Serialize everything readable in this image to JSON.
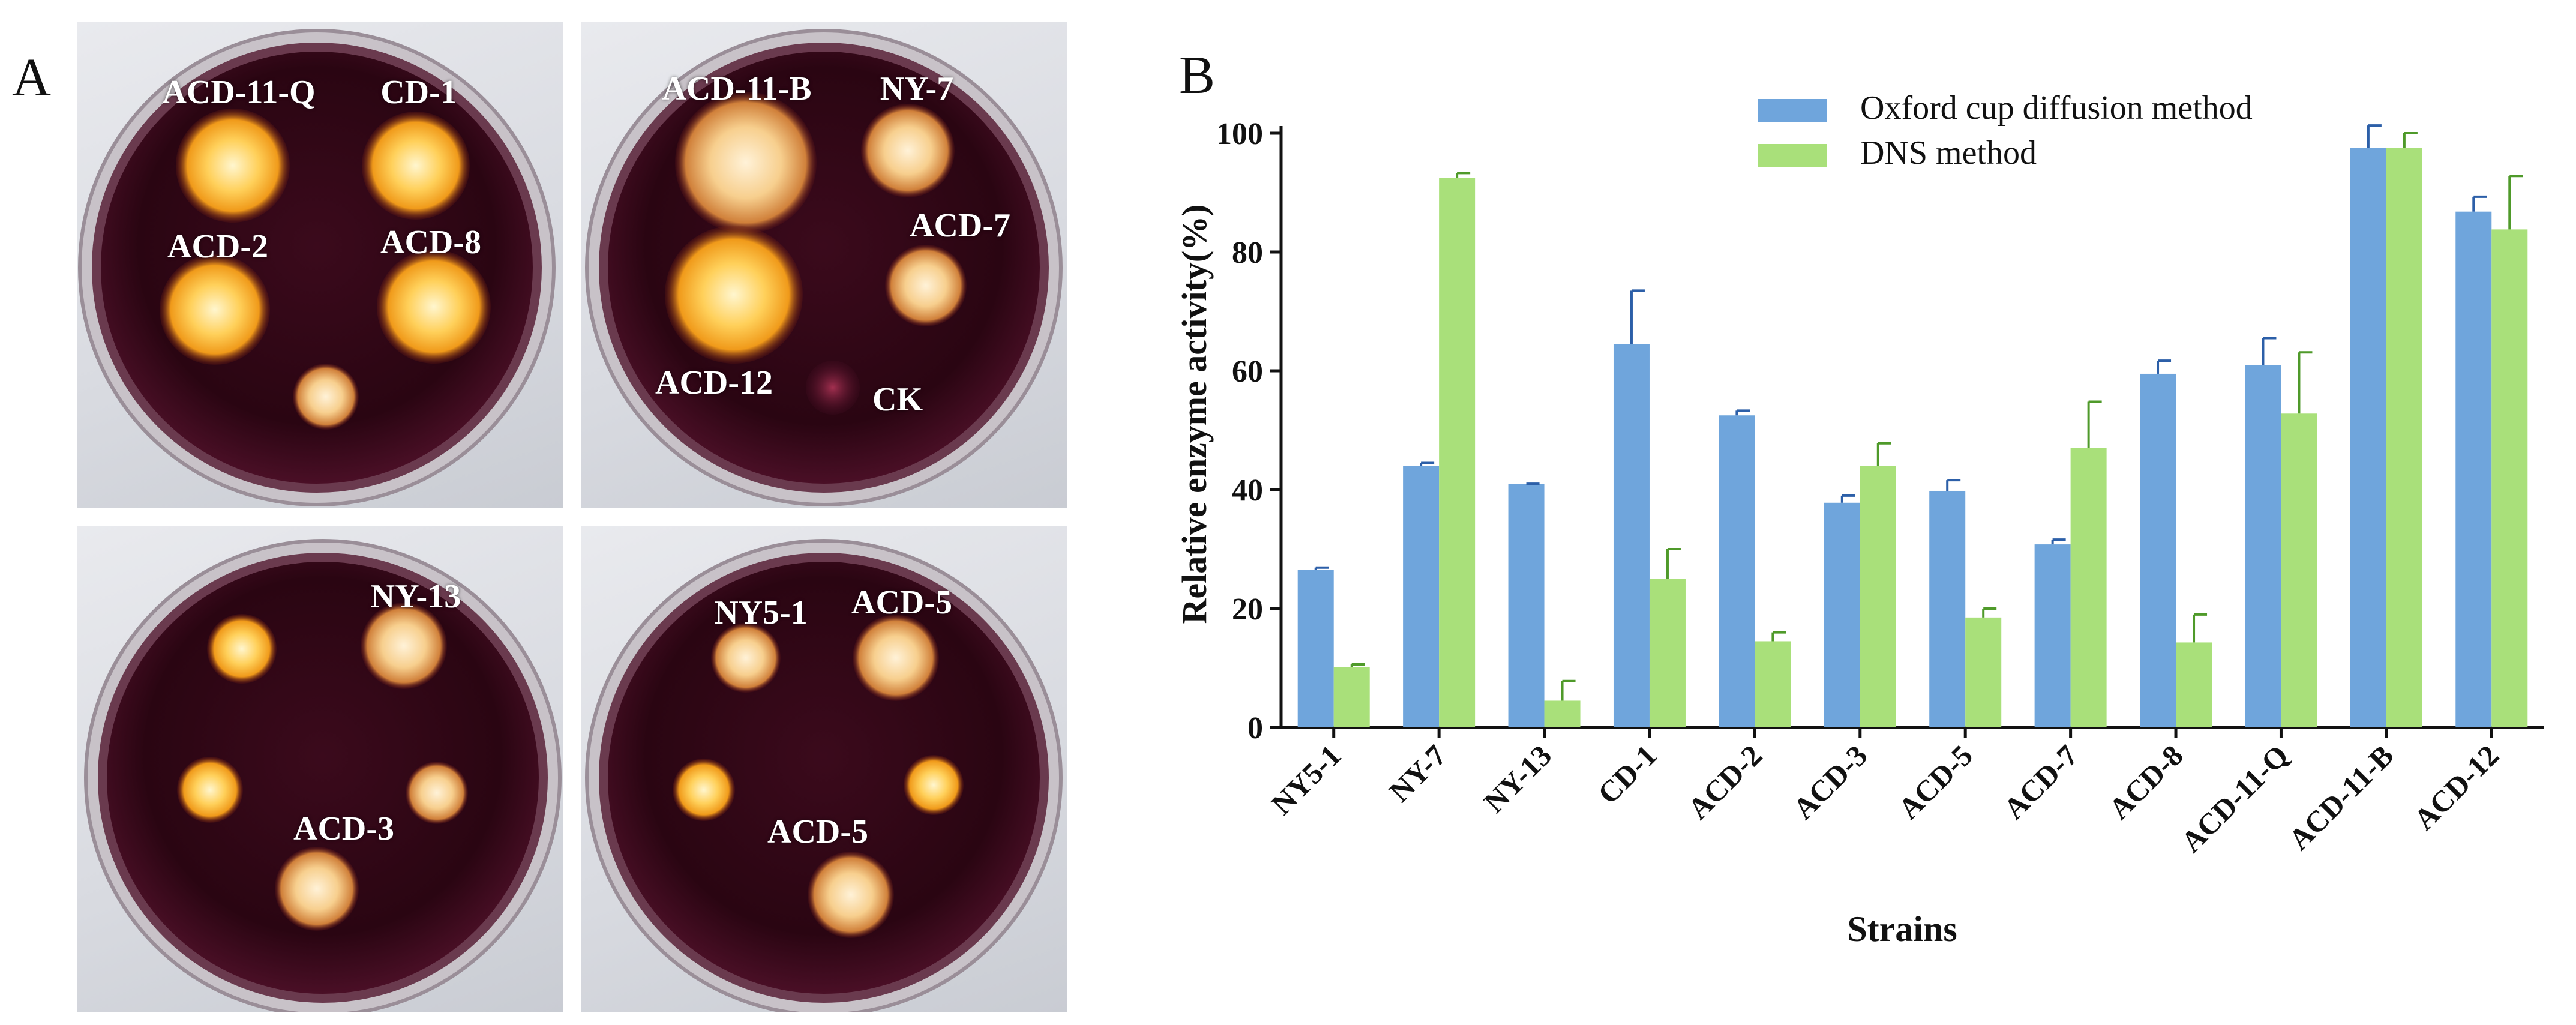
{
  "figure": {
    "panel_a_label": "A",
    "panel_b_label": "B"
  },
  "plates": {
    "top_left": [
      "ACD-11-Q",
      "CD-1",
      "ACD-2",
      "ACD-8"
    ],
    "top_right": [
      "ACD-11-B",
      "NY-7",
      "ACD-7",
      "ACD-12",
      "CK"
    ],
    "bottom_left": [
      "NY-13",
      "ACD-3"
    ],
    "bottom_right": [
      "NY5-1",
      "ACD-5",
      "ACD-5"
    ]
  },
  "colors": {
    "series_oxford": "#6fa5dc",
    "series_oxford_err": "#2c5fa8",
    "series_dns": "#a9e07a",
    "series_dns_err": "#4f9a2a",
    "agar": "#2a0a14",
    "halo_core": "#fff3c0",
    "halo_edge": "#f5a623"
  },
  "chart_data": {
    "type": "bar",
    "title": "",
    "xlabel": "Strains",
    "ylabel": "Relative enzyme activity(%)",
    "ylim": [
      0,
      105
    ],
    "yticks": [
      0,
      20,
      40,
      60,
      80,
      100
    ],
    "categories": [
      "NY5-1",
      "NY-7",
      "NY-13",
      "CD-1",
      "ACD-2",
      "ACD-3",
      "ACD-5",
      "ACD-7",
      "ACD-8",
      "ACD-11-Q",
      "ACD-11-B",
      "ACD-12"
    ],
    "series": [
      {
        "name": "Oxford cup diffusion method",
        "values": [
          26.5,
          44,
          41,
          64.5,
          52.5,
          37.8,
          39.8,
          30.8,
          59.5,
          61,
          97.5,
          86.8
        ],
        "errors": [
          0.4,
          0.5,
          0,
          9,
          0.8,
          1.2,
          1.8,
          0.8,
          2.2,
          4.5,
          3.8,
          2.5
        ]
      },
      {
        "name": "DNS method",
        "values": [
          10.2,
          92.5,
          4.5,
          25,
          14.5,
          44,
          18.5,
          47,
          14.3,
          52.8,
          97.5,
          83.8
        ],
        "errors": [
          0.4,
          0.8,
          3.3,
          5,
          1.5,
          3.8,
          1.5,
          7.8,
          4.7,
          10.3,
          2.5,
          9
        ]
      }
    ],
    "legend_position": "top-center"
  }
}
